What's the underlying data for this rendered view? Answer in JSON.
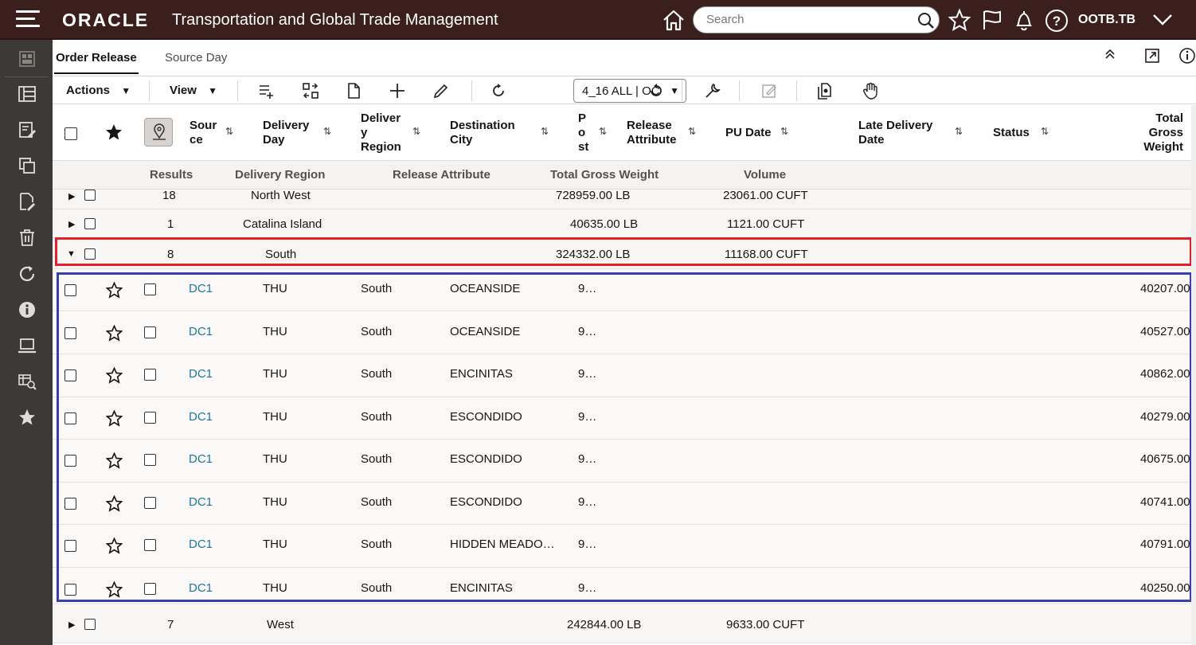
{
  "header": {
    "logo": "ORACLE",
    "app_title": "Transportation and Global Trade Management",
    "search_placeholder": "Search",
    "user": "OOTB.TB"
  },
  "tabs": [
    {
      "label": "Order Release",
      "active": true
    },
    {
      "label": "Source Day",
      "active": false
    }
  ],
  "toolbar": {
    "actions_label": "Actions",
    "view_label": "View",
    "saved_query": "4_16 ALL | OC"
  },
  "columns": {
    "source": [
      "Sour",
      "ce"
    ],
    "delivery_day": [
      "Delivery",
      "Day"
    ],
    "delivery_region": [
      "Deliver",
      "y",
      "Region"
    ],
    "destination_city": [
      "Destination",
      "City"
    ],
    "post": [
      "P",
      "o",
      "st"
    ],
    "release_attribute": [
      "Release",
      "Attribute"
    ],
    "pu_date": "PU Date",
    "late_delivery_date": [
      "Late Delivery",
      "Date"
    ],
    "status": "Status",
    "total_gross_weight": [
      "Total",
      "Gross",
      "Weight"
    ]
  },
  "group_headers": {
    "results": "Results",
    "delivery_region": "Delivery Region",
    "release_attribute": "Release Attribute",
    "total_gross_weight": "Total Gross Weight",
    "volume": "Volume"
  },
  "groups": [
    {
      "results": "18",
      "region": "North West",
      "weight": "728959.00 LB",
      "volume": "23061.00 CUFT",
      "expanded": false
    },
    {
      "results": "1",
      "region": "Catalina Island",
      "weight": "40635.00 LB",
      "volume": "1121.00 CUFT",
      "expanded": false
    },
    {
      "results": "8",
      "region": "South",
      "weight": "324332.00 LB",
      "volume": "11168.00 CUFT",
      "expanded": true
    },
    {
      "results": "7",
      "region": "West",
      "weight": "242844.00 LB",
      "volume": "9633.00 CUFT",
      "expanded": false
    }
  ],
  "rows": [
    {
      "source": "DC1",
      "day": "THU",
      "region": "South",
      "city": "OCEANSIDE",
      "post": "9…",
      "weight": "40207.00"
    },
    {
      "source": "DC1",
      "day": "THU",
      "region": "South",
      "city": "OCEANSIDE",
      "post": "9…",
      "weight": "40527.00"
    },
    {
      "source": "DC1",
      "day": "THU",
      "region": "South",
      "city": "ENCINITAS",
      "post": "9…",
      "weight": "40862.00"
    },
    {
      "source": "DC1",
      "day": "THU",
      "region": "South",
      "city": "ESCONDIDO",
      "post": "9…",
      "weight": "40279.00"
    },
    {
      "source": "DC1",
      "day": "THU",
      "region": "South",
      "city": "ESCONDIDO",
      "post": "9…",
      "weight": "40675.00"
    },
    {
      "source": "DC1",
      "day": "THU",
      "region": "South",
      "city": "ESCONDIDO",
      "post": "9…",
      "weight": "40741.00"
    },
    {
      "source": "DC1",
      "day": "THU",
      "region": "South",
      "city": "HIDDEN MEADO…",
      "post": "9…",
      "weight": "40791.00"
    },
    {
      "source": "DC1",
      "day": "THU",
      "region": "South",
      "city": "ENCINITAS",
      "post": "9…",
      "weight": "40250.00"
    }
  ],
  "colors": {
    "header_bg": "#3a1f1c",
    "sidebar_bg": "#3d3936",
    "link": "#227498",
    "highlight_red": "#e0202a",
    "highlight_blue": "#3a3fb0"
  }
}
